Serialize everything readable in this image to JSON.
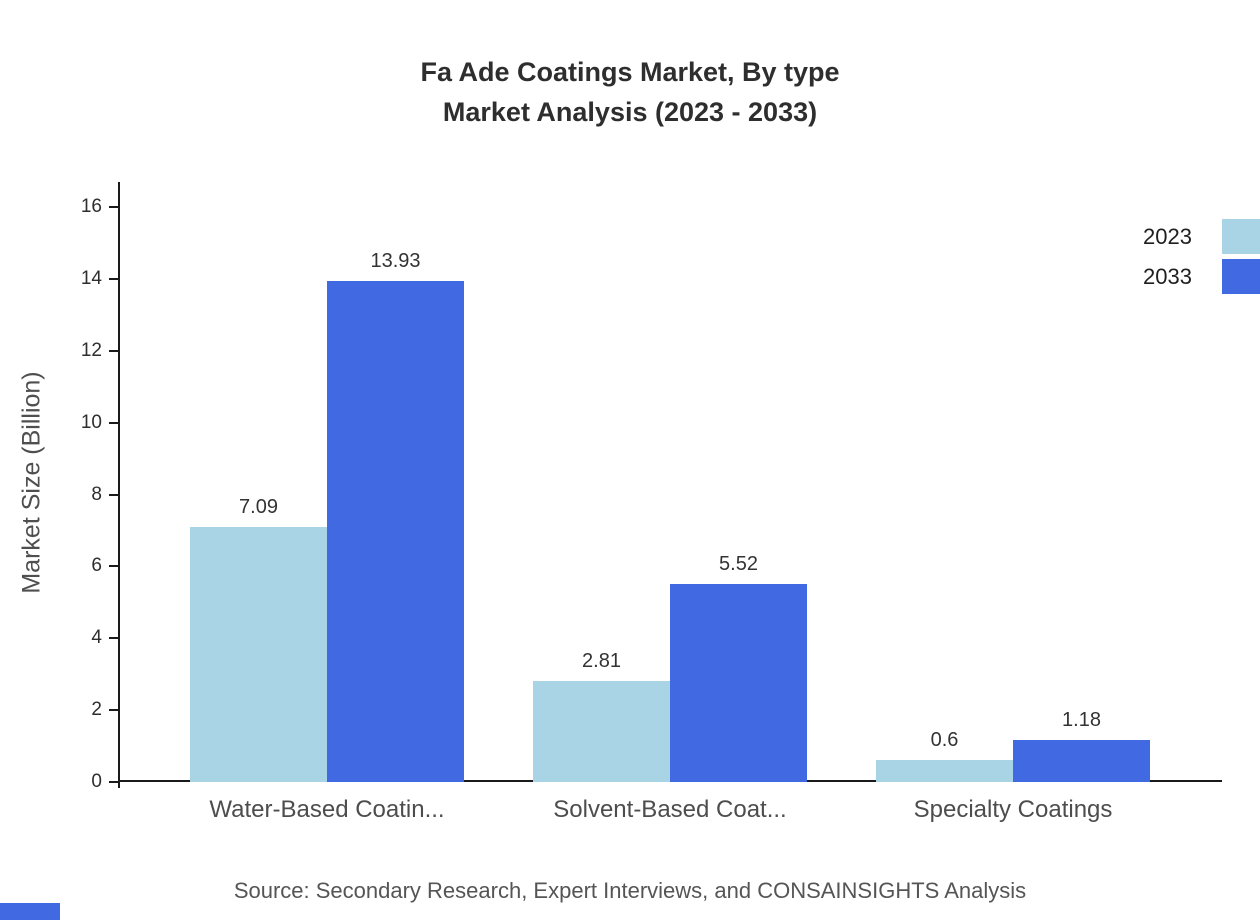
{
  "title": {
    "line1": "Fa Ade Coatings Market, By type",
    "line2": "Market Analysis (2023 - 2033)"
  },
  "chart_data": {
    "type": "bar",
    "title": "Fa Ade Coatings Market, By type Market Analysis (2023 - 2033)",
    "categories": [
      "Water-Based Coatin...",
      "Solvent-Based Coat...",
      "Specialty Coatings"
    ],
    "series": [
      {
        "name": "2023",
        "color": "#a9d4e5",
        "values": [
          7.09,
          2.81,
          0.6
        ],
        "labels": [
          "7.09",
          "2.81",
          "0.6"
        ]
      },
      {
        "name": "2033",
        "color": "#4169e1",
        "values": [
          13.93,
          5.52,
          1.18
        ],
        "labels": [
          "13.93",
          "5.52",
          "1.18"
        ]
      }
    ],
    "xlabel": "",
    "ylabel": "Market Size (Billion)",
    "ylim": [
      0,
      16
    ],
    "yticks": [
      0,
      2,
      4,
      6,
      8,
      10,
      12,
      14,
      16
    ],
    "grid": false,
    "legend_position": "top-right"
  },
  "source": "Source: Secondary Research, Expert Interviews, and CONSAINSIGHTS Analysis",
  "accent_color": "#4169e1"
}
